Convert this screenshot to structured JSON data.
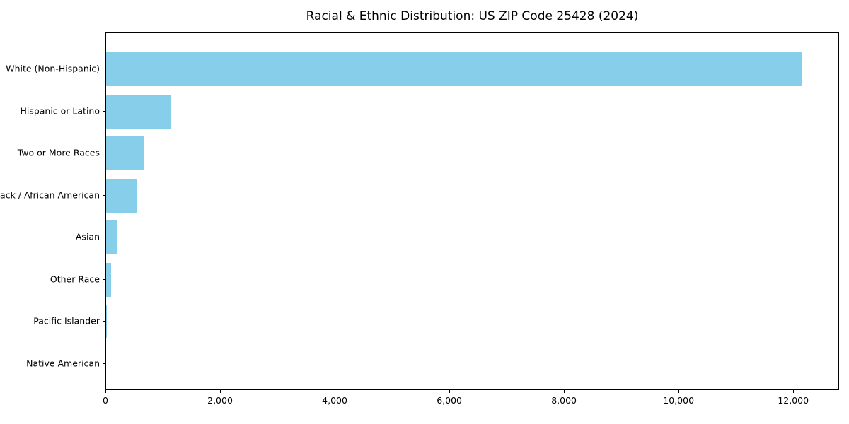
{
  "chart_data": {
    "type": "bar",
    "orientation": "horizontal",
    "title": "Racial & Ethnic Distribution: US ZIP Code 25428 (2024)",
    "categories": [
      "White (Non-Hispanic)",
      "Hispanic or Latino",
      "Two or More Races",
      "Black / African American",
      "Asian",
      "Other Race",
      "Pacific Islander",
      "Native American"
    ],
    "values": [
      12170,
      1140,
      670,
      530,
      180,
      90,
      12,
      0
    ],
    "bar_color": "#87CEEB",
    "xlabel": "",
    "ylabel": "",
    "xlim": [
      0,
      12800
    ],
    "x_ticks": [
      0,
      2000,
      4000,
      6000,
      8000,
      10000,
      12000
    ],
    "x_tick_labels": [
      "0",
      "2,000",
      "4,000",
      "6,000",
      "8,000",
      "10,000",
      "12,000"
    ],
    "grid": false,
    "legend": "none",
    "spine_color": "#000000",
    "background_color": "#ffffff"
  }
}
